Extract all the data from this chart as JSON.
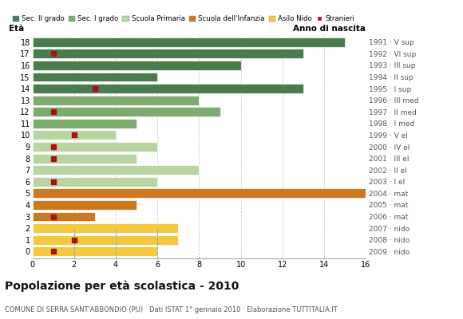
{
  "ages": [
    18,
    17,
    16,
    15,
    14,
    13,
    12,
    11,
    10,
    9,
    8,
    7,
    6,
    5,
    4,
    3,
    2,
    1,
    0
  ],
  "years": [
    "1991 · V sup",
    "1992 · VI sup",
    "1993 · III sup",
    "1994 · II sup",
    "1995 · I sup",
    "1996 · III med",
    "1997 · II med",
    "1998 · I med",
    "1999 · V el",
    "2000 · IV el",
    "2001 · III el",
    "2002 · II el",
    "2003 · I el",
    "2004 · mat",
    "2005 · mat",
    "2006 · mat",
    "2007 · nido",
    "2008 · nido",
    "2009 · nido"
  ],
  "bar_values": [
    15,
    13,
    10,
    6,
    13,
    8,
    9,
    5,
    4,
    6,
    5,
    8,
    6,
    16,
    5,
    3,
    7,
    7,
    6
  ],
  "bar_colors": [
    "#4a7c4e",
    "#4a7c4e",
    "#4a7c4e",
    "#4a7c4e",
    "#4a7c4e",
    "#7daa6e",
    "#7daa6e",
    "#7daa6e",
    "#b8d4a0",
    "#b8d4a0",
    "#b8d4a0",
    "#b8d4a0",
    "#b8d4a0",
    "#cc7722",
    "#cc7722",
    "#cc7722",
    "#f5c842",
    "#f5c842",
    "#f5c842"
  ],
  "stranieri_values": [
    0,
    1,
    0,
    0,
    3,
    0,
    1,
    0,
    2,
    1,
    1,
    0,
    1,
    0,
    0,
    1,
    0,
    2,
    1
  ],
  "stranieri_color": "#aa1111",
  "title": "Popolazione per età scolastica - 2010",
  "subtitle": "COMUNE DI SERRA SANT'ABBONDIO (PU) · Dati ISTAT 1° gennaio 2010 · Elaborazione TUTTITALIA.IT",
  "label_eta": "Età",
  "label_anno": "Anno di nascita",
  "xlim": [
    0,
    16
  ],
  "xticks": [
    0,
    2,
    4,
    6,
    8,
    10,
    12,
    14,
    16
  ],
  "legend_labels": [
    "Sec. II grado",
    "Sec. I grado",
    "Scuola Primaria",
    "Scuola dell'Infanzia",
    "Asilo Nido",
    "Stranieri"
  ],
  "legend_colors": [
    "#4a7c4e",
    "#7daa6e",
    "#b8d4a0",
    "#cc7722",
    "#f5c842",
    "#aa1111"
  ],
  "bg_color": "#ffffff",
  "bar_height": 0.82,
  "grid_color": "#cccccc",
  "dashed_grid_color": "#66bbbb"
}
